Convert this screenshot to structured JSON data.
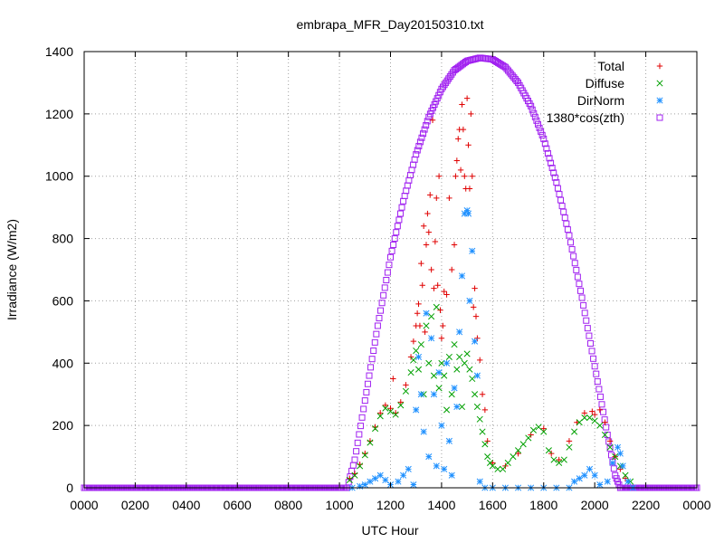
{
  "chart_data": {
    "type": "scatter",
    "title": "embrapa_MFR_Day20150310.txt",
    "xlabel": "UTC Hour",
    "ylabel": "Irradiance (W/m2)",
    "xlim": [
      0,
      24
    ],
    "ylim": [
      0,
      1400
    ],
    "x_tick_labels": [
      "0000",
      "0200",
      "0400",
      "0600",
      "0800",
      "1000",
      "1200",
      "1400",
      "1600",
      "1800",
      "2000",
      "2200",
      "0000"
    ],
    "y_tick_labels": [
      "0",
      "200",
      "400",
      "600",
      "800",
      "1000",
      "1200",
      "1400"
    ],
    "y_ticks": [
      0,
      200,
      400,
      600,
      800,
      1000,
      1200,
      1400
    ],
    "grid": true,
    "legend_position": "top-right",
    "series": [
      {
        "name": "Total",
        "marker": "plus",
        "color": "#e00000",
        "points": [
          [
            10.4,
            30
          ],
          [
            10.6,
            45
          ],
          [
            10.8,
            75
          ],
          [
            11.0,
            110
          ],
          [
            11.2,
            150
          ],
          [
            11.4,
            195
          ],
          [
            11.6,
            240
          ],
          [
            11.8,
            265
          ],
          [
            12.0,
            255
          ],
          [
            12.1,
            350
          ],
          [
            12.2,
            240
          ],
          [
            12.4,
            275
          ],
          [
            12.6,
            330
          ],
          [
            12.8,
            420
          ],
          [
            12.9,
            470
          ],
          [
            13.0,
            520
          ],
          [
            13.05,
            560
          ],
          [
            13.1,
            590
          ],
          [
            13.15,
            520
          ],
          [
            13.2,
            720
          ],
          [
            13.25,
            650
          ],
          [
            13.3,
            840
          ],
          [
            13.35,
            500
          ],
          [
            13.4,
            780
          ],
          [
            13.45,
            880
          ],
          [
            13.5,
            820
          ],
          [
            13.55,
            940
          ],
          [
            13.6,
            700
          ],
          [
            13.65,
            1180
          ],
          [
            13.7,
            640
          ],
          [
            13.75,
            790
          ],
          [
            13.8,
            930
          ],
          [
            13.85,
            650
          ],
          [
            13.9,
            1000
          ],
          [
            13.95,
            570
          ],
          [
            14.0,
            480
          ],
          [
            14.05,
            520
          ],
          [
            14.1,
            630
          ],
          [
            14.2,
            620
          ],
          [
            14.3,
            930
          ],
          [
            14.4,
            700
          ],
          [
            14.5,
            780
          ],
          [
            14.55,
            1000
          ],
          [
            14.6,
            1050
          ],
          [
            14.65,
            1120
          ],
          [
            14.7,
            1150
          ],
          [
            14.75,
            1020
          ],
          [
            14.8,
            1230
          ],
          [
            14.85,
            1150
          ],
          [
            14.9,
            1000
          ],
          [
            14.95,
            960
          ],
          [
            15.0,
            1250
          ],
          [
            15.05,
            1100
          ],
          [
            15.1,
            960
          ],
          [
            15.15,
            1200
          ],
          [
            15.2,
            1000
          ],
          [
            15.25,
            580
          ],
          [
            15.3,
            640
          ],
          [
            15.35,
            550
          ],
          [
            15.4,
            480
          ],
          [
            15.5,
            410
          ],
          [
            15.6,
            300
          ],
          [
            15.7,
            250
          ],
          [
            15.8,
            150
          ],
          [
            16.0,
            80
          ],
          [
            16.5,
            70
          ],
          [
            17.0,
            110
          ],
          [
            17.5,
            170
          ],
          [
            18.0,
            190
          ],
          [
            18.3,
            110
          ],
          [
            18.6,
            90
          ],
          [
            19.0,
            150
          ],
          [
            19.3,
            210
          ],
          [
            19.6,
            240
          ],
          [
            19.9,
            245
          ],
          [
            20.0,
            235
          ],
          [
            20.2,
            250
          ],
          [
            20.4,
            210
          ],
          [
            20.6,
            150
          ],
          [
            20.8,
            100
          ],
          [
            21.0,
            60
          ],
          [
            21.2,
            30
          ]
        ]
      },
      {
        "name": "Diffuse",
        "marker": "cross",
        "color": "#00a000",
        "points": [
          [
            10.4,
            25
          ],
          [
            10.6,
            40
          ],
          [
            10.8,
            70
          ],
          [
            11.0,
            105
          ],
          [
            11.2,
            145
          ],
          [
            11.4,
            190
          ],
          [
            11.6,
            230
          ],
          [
            11.8,
            255
          ],
          [
            12.0,
            245
          ],
          [
            12.2,
            235
          ],
          [
            12.4,
            265
          ],
          [
            12.6,
            310
          ],
          [
            12.8,
            370
          ],
          [
            12.9,
            410
          ],
          [
            13.0,
            440
          ],
          [
            13.1,
            380
          ],
          [
            13.2,
            460
          ],
          [
            13.3,
            300
          ],
          [
            13.4,
            520
          ],
          [
            13.5,
            400
          ],
          [
            13.6,
            550
          ],
          [
            13.7,
            360
          ],
          [
            13.8,
            580
          ],
          [
            13.9,
            320
          ],
          [
            14.0,
            400
          ],
          [
            14.1,
            360
          ],
          [
            14.2,
            250
          ],
          [
            14.3,
            420
          ],
          [
            14.4,
            300
          ],
          [
            14.5,
            460
          ],
          [
            14.6,
            380
          ],
          [
            14.7,
            420
          ],
          [
            14.8,
            260
          ],
          [
            14.9,
            400
          ],
          [
            15.0,
            430
          ],
          [
            15.1,
            380
          ],
          [
            15.2,
            350
          ],
          [
            15.3,
            300
          ],
          [
            15.4,
            260
          ],
          [
            15.5,
            220
          ],
          [
            15.6,
            180
          ],
          [
            15.7,
            140
          ],
          [
            15.8,
            100
          ],
          [
            15.9,
            80
          ],
          [
            16.0,
            70
          ],
          [
            16.2,
            60
          ],
          [
            16.4,
            60
          ],
          [
            16.6,
            80
          ],
          [
            16.8,
            100
          ],
          [
            17.0,
            120
          ],
          [
            17.2,
            140
          ],
          [
            17.4,
            160
          ],
          [
            17.6,
            185
          ],
          [
            17.8,
            195
          ],
          [
            18.0,
            180
          ],
          [
            18.2,
            120
          ],
          [
            18.4,
            90
          ],
          [
            18.6,
            80
          ],
          [
            18.8,
            90
          ],
          [
            19.0,
            130
          ],
          [
            19.2,
            180
          ],
          [
            19.4,
            210
          ],
          [
            19.6,
            225
          ],
          [
            19.8,
            225
          ],
          [
            20.0,
            215
          ],
          [
            20.2,
            200
          ],
          [
            20.4,
            170
          ],
          [
            20.6,
            130
          ],
          [
            20.8,
            100
          ],
          [
            21.0,
            70
          ],
          [
            21.2,
            40
          ],
          [
            21.4,
            20
          ]
        ]
      },
      {
        "name": "DirNorm",
        "marker": "star",
        "color": "#1e90ff",
        "points": [
          [
            10.5,
            0
          ],
          [
            10.8,
            5
          ],
          [
            11.0,
            10
          ],
          [
            11.2,
            20
          ],
          [
            11.4,
            30
          ],
          [
            11.6,
            40
          ],
          [
            11.8,
            25
          ],
          [
            12.0,
            10
          ],
          [
            12.3,
            20
          ],
          [
            12.5,
            40
          ],
          [
            12.7,
            60
          ],
          [
            12.9,
            10
          ],
          [
            13.0,
            250
          ],
          [
            13.1,
            420
          ],
          [
            13.2,
            300
          ],
          [
            13.3,
            180
          ],
          [
            13.4,
            560
          ],
          [
            13.5,
            100
          ],
          [
            13.6,
            480
          ],
          [
            13.7,
            300
          ],
          [
            13.8,
            70
          ],
          [
            13.9,
            370
          ],
          [
            14.0,
            200
          ],
          [
            14.1,
            60
          ],
          [
            14.2,
            400
          ],
          [
            14.3,
            150
          ],
          [
            14.4,
            40
          ],
          [
            14.5,
            320
          ],
          [
            14.6,
            260
          ],
          [
            14.7,
            500
          ],
          [
            14.8,
            680
          ],
          [
            14.9,
            880
          ],
          [
            15.0,
            890
          ],
          [
            15.05,
            880
          ],
          [
            15.1,
            600
          ],
          [
            15.2,
            760
          ],
          [
            15.3,
            470
          ],
          [
            15.4,
            360
          ],
          [
            15.5,
            20
          ],
          [
            15.7,
            0
          ],
          [
            16.0,
            0
          ],
          [
            16.5,
            0
          ],
          [
            17.0,
            0
          ],
          [
            17.5,
            0
          ],
          [
            18.0,
            0
          ],
          [
            18.5,
            0
          ],
          [
            19.0,
            0
          ],
          [
            19.2,
            20
          ],
          [
            19.4,
            30
          ],
          [
            19.6,
            40
          ],
          [
            19.8,
            60
          ],
          [
            20.0,
            40
          ],
          [
            20.2,
            10
          ],
          [
            20.5,
            20
          ],
          [
            20.7,
            80
          ],
          [
            20.9,
            130
          ],
          [
            21.0,
            110
          ],
          [
            21.1,
            70
          ],
          [
            21.3,
            20
          ],
          [
            21.5,
            0
          ]
        ]
      },
      {
        "name": "1380*cos(zth)",
        "marker": "square",
        "color": "#a020f0",
        "points": [
          [
            0,
            0
          ],
          [
            2,
            0
          ],
          [
            4,
            0
          ],
          [
            6,
            0
          ],
          [
            8,
            0
          ],
          [
            9,
            0
          ],
          [
            10,
            0
          ],
          [
            10.3,
            0
          ],
          [
            10.6,
            90
          ],
          [
            11.0,
            280
          ],
          [
            11.5,
            520
          ],
          [
            12.0,
            740
          ],
          [
            12.5,
            920
          ],
          [
            13.0,
            1070
          ],
          [
            13.5,
            1190
          ],
          [
            14.0,
            1280
          ],
          [
            14.5,
            1340
          ],
          [
            15.0,
            1370
          ],
          [
            15.5,
            1380
          ],
          [
            16.0,
            1375
          ],
          [
            16.5,
            1350
          ],
          [
            17.0,
            1300
          ],
          [
            17.5,
            1225
          ],
          [
            18.0,
            1120
          ],
          [
            18.5,
            980
          ],
          [
            19.0,
            810
          ],
          [
            19.5,
            610
          ],
          [
            20.0,
            390
          ],
          [
            20.5,
            170
          ],
          [
            20.8,
            40
          ],
          [
            21.0,
            0
          ],
          [
            22,
            0
          ],
          [
            23,
            0
          ],
          [
            24,
            0
          ]
        ]
      }
    ]
  }
}
